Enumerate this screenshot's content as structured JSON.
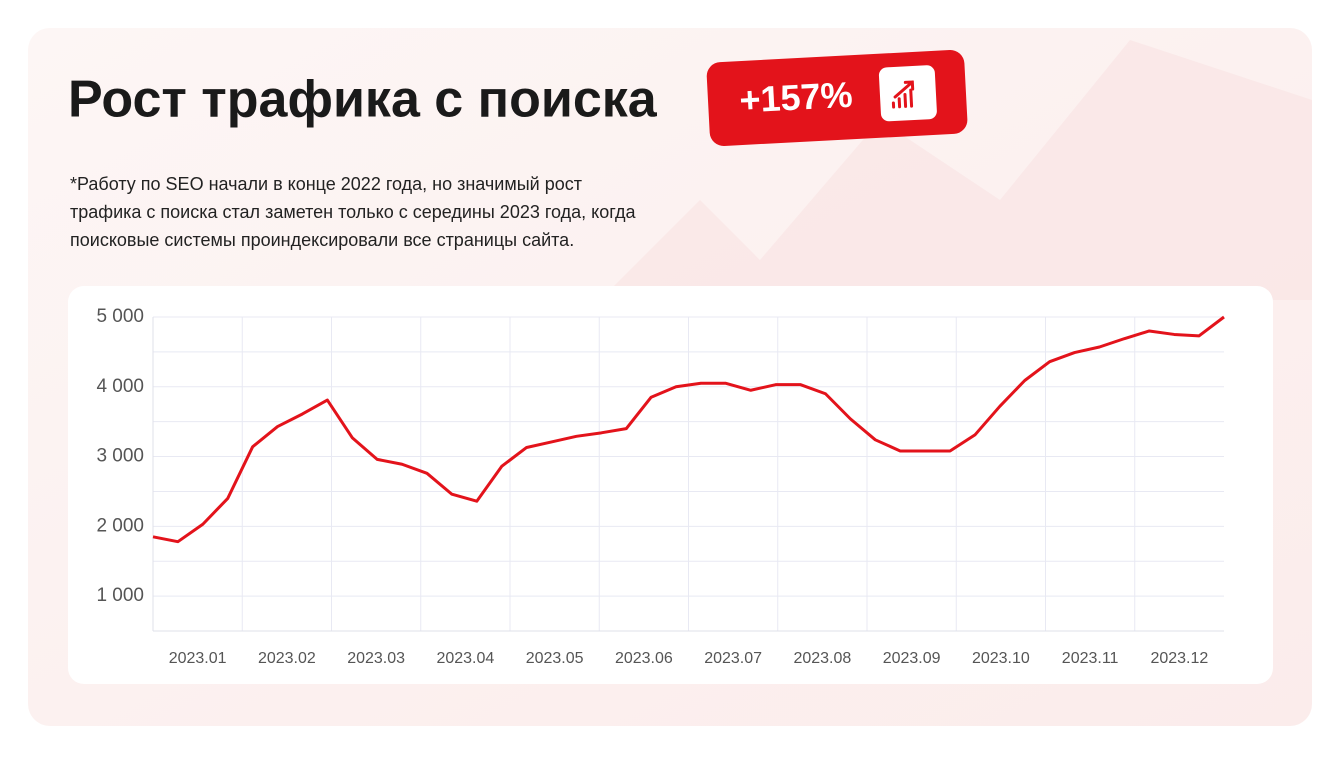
{
  "chart_data": {
    "type": "line",
    "title": "Рост трафика с поиска",
    "badge": "+157%",
    "note_lines": [
      "*Работу по SEO начали в конце 2022 года, но значимый рост",
      "трафика с поиска стал заметен только с середины 2023 года, когда",
      "поисковые системы проиндексировали все страницы сайта."
    ],
    "x_labels": [
      "2023.01",
      "2023.02",
      "2023.03",
      "2023.04",
      "2023.05",
      "2023.06",
      "2023.07",
      "2023.08",
      "2023.09",
      "2023.10",
      "2023.11",
      "2023.12"
    ],
    "values": [
      1850,
      1780,
      2030,
      2400,
      3140,
      3430,
      3610,
      3810,
      3270,
      2960,
      2890,
      2760,
      2460,
      2360,
      2860,
      3130,
      3210,
      3290,
      3340,
      3400,
      3850,
      4000,
      4050,
      4050,
      3950,
      4030,
      4030,
      3900,
      3540,
      3240,
      3080,
      3080,
      3080,
      3310,
      3720,
      4090,
      4360,
      4490,
      4570,
      4690,
      4800,
      4750,
      4730,
      5000
    ],
    "color": "#e3131b",
    "ylim": [
      500,
      5000
    ],
    "yticks": [
      {
        "value": 1000,
        "label": "1 000"
      },
      {
        "value": 2000,
        "label": "2 000"
      },
      {
        "value": 3000,
        "label": "3 000"
      },
      {
        "value": 4000,
        "label": "4 000"
      },
      {
        "value": 5000,
        "label": "5 000"
      }
    ],
    "minor_yticks": [
      1500,
      2500,
      3500,
      4500
    ],
    "grid": true
  }
}
